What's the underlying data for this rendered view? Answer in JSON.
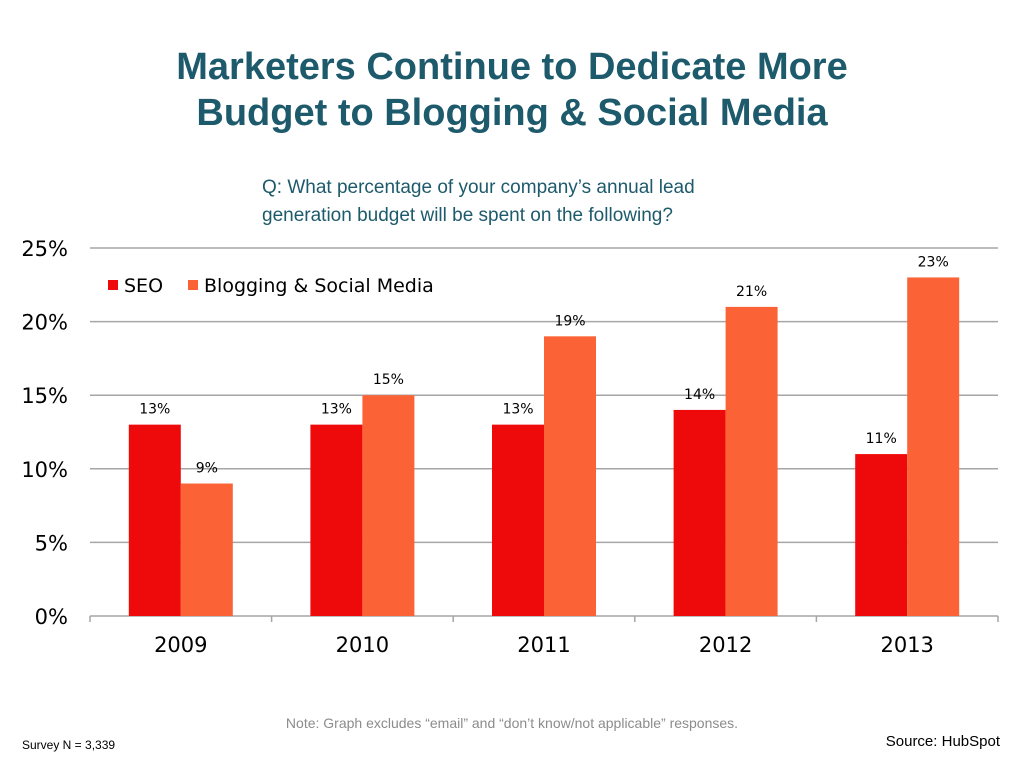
{
  "slide": {
    "title_line1": "Marketers Continue to Dedicate More",
    "title_line2": "Budget to Blogging & Social Media",
    "question_line1": "Q: What percentage of your company’s annual lead",
    "question_line2": "generation budget will be spent on the following?",
    "note": "Note: Graph excludes “email” and “don’t know/not applicable” responses.",
    "survey": "Survey N = 3,339",
    "source": "Source: HubSpot"
  },
  "colors": {
    "title": "#1d5a6b",
    "seo": "#ee0a0a",
    "blogging": "#fb6235",
    "grid": "#a6a6a6",
    "note": "#8c8c8c"
  },
  "chart_data": {
    "type": "bar",
    "title": "",
    "xlabel": "",
    "ylabel": "",
    "categories": [
      "2009",
      "2010",
      "2011",
      "2012",
      "2013"
    ],
    "series": [
      {
        "name": "SEO",
        "values": [
          13,
          13,
          13,
          14,
          11
        ],
        "color": "#ee0a0a"
      },
      {
        "name": "Blogging & Social Media",
        "values": [
          9,
          15,
          19,
          21,
          23
        ],
        "color": "#fb6235"
      }
    ],
    "ylim": [
      0,
      25
    ],
    "yticks": [
      0,
      5,
      10,
      15,
      20,
      25
    ],
    "ytick_labels": [
      "0%",
      "5%",
      "10%",
      "15%",
      "20%",
      "25%"
    ],
    "value_suffix": "%",
    "grid": true,
    "legend_position": "top-left"
  }
}
